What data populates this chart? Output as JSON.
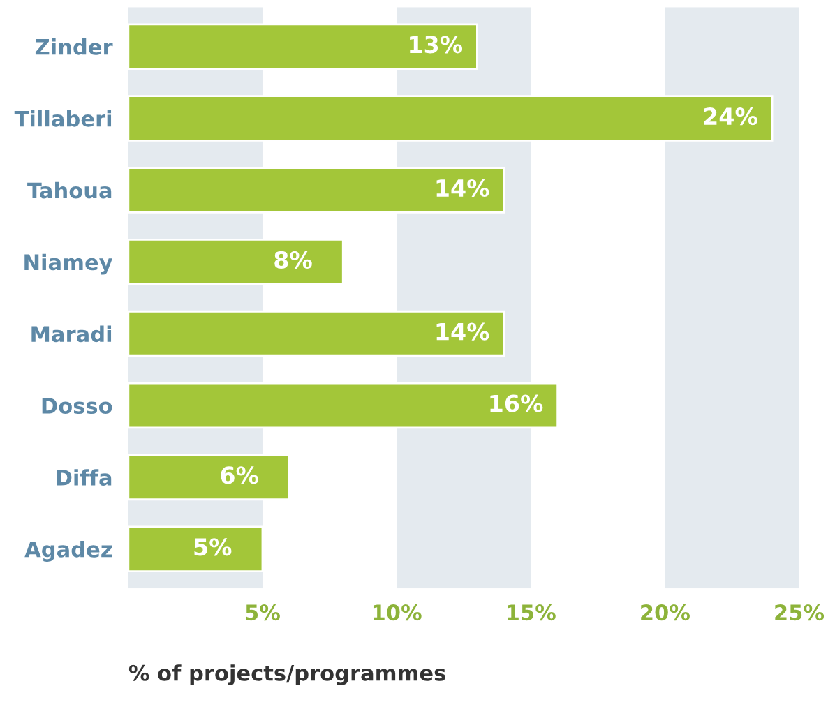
{
  "chart_data": {
    "type": "bar",
    "orientation": "horizontal",
    "xlabel": "% of projects/programmes",
    "categories": [
      "Zinder",
      "Tillaberi",
      "Tahoua",
      "Niamey",
      "Maradi",
      "Dosso",
      "Diffa",
      "Agadez"
    ],
    "values": [
      13,
      24,
      14,
      8,
      14,
      16,
      6,
      5
    ],
    "color": "#a3c639",
    "value_labels": [
      "13%",
      "24%",
      "14%",
      "8%",
      "14%",
      "16%",
      "6%",
      "5%"
    ],
    "xlim": [
      0,
      25
    ],
    "xticks": [
      {
        "value": 5,
        "label": "5%"
      },
      {
        "value": 10,
        "label": "10%"
      },
      {
        "value": 15,
        "label": "15%"
      },
      {
        "value": 20,
        "label": "20%"
      },
      {
        "value": 25,
        "label": "25%"
      }
    ],
    "bands": [
      {
        "axis": "x",
        "from": 0,
        "to": 5,
        "color": "#e4eaef"
      },
      {
        "axis": "x",
        "from": 10,
        "to": 15,
        "color": "#e4eaef"
      },
      {
        "axis": "x",
        "from": 20,
        "to": 25,
        "color": "#e4eaef"
      }
    ],
    "grid": false,
    "legend": false
  }
}
